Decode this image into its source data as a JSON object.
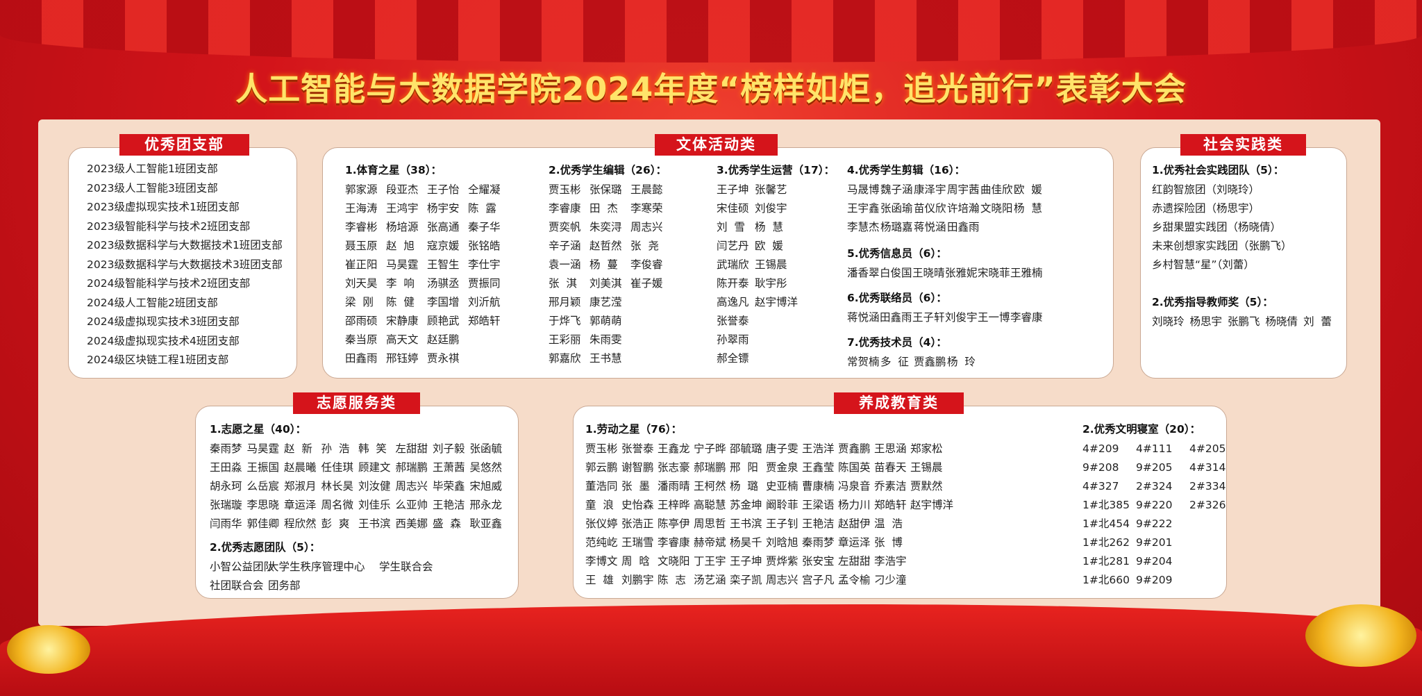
{
  "title": "人工智能与大数据学院2024年度“榜样如炬，追光前行”表彰大会",
  "branch": {
    "header": "优秀团支部",
    "items": [
      "2023级人工智能1班团支部",
      "2023级人工智能3班团支部",
      "2023级虚拟现实技术1班团支部",
      "2023级智能科学与技术2班团支部",
      "2023级数据科学与大数据技术1班团支部",
      "2023级数据科学与大数据技术3班团支部",
      "2024级智能科学与技术2班团支部",
      "2024级人工智能2班团支部",
      "2024级虚拟现实技术3班团支部",
      "2024级虚拟现实技术4班团支部",
      "2024级区块链工程1班团支部"
    ]
  },
  "culture": {
    "header": "文体活动类",
    "sections": [
      {
        "title": "1.体育之星（38）：",
        "names": [
          "郭家源",
          "段亚杰",
          "王子怡",
          "仝耀凝",
          "王海涛",
          "王鸿宇",
          "杨宇安",
          "陈  露",
          "李睿彬",
          "杨培源",
          "张高通",
          "秦子华",
          "聂玉原",
          "赵  旭",
          "寇京媛",
          "张铭皓",
          "崔正阳",
          "马昊霆",
          "王智生",
          "李仕宇",
          "刘天昊",
          "李  响",
          "汤骐丞",
          "贾振同",
          "梁  刚",
          "陈  健",
          "李国增",
          "刘沂航",
          "邵雨硕",
          "宋静康",
          "顾艳武",
          "郑皓轩",
          "秦当原",
          "高天文",
          "赵廷鹏",
          "",
          "田鑫雨",
          "邢钰婷",
          "贾永祺",
          ""
        ]
      },
      {
        "title": "2.优秀学生编辑（26）：",
        "names": [
          "贾玉彬",
          "张保璐",
          "王晨懿",
          "李睿康",
          "田  杰",
          "李寒荣",
          "贾奕帆",
          "朱奕浔",
          "周志兴",
          "辛子涵",
          "赵哲然",
          "张  尧",
          "袁一涵",
          "杨  蔓",
          "李俊睿",
          "张  淇",
          "刘美淇",
          "崔子媛",
          "邢月颖",
          "康艺滢",
          "",
          "于烨飞",
          "郭萌萌",
          "",
          "王彩丽",
          "朱雨雯",
          "",
          "郭嘉欣",
          "王书慧",
          ""
        ]
      },
      {
        "title": "3.优秀学生运营（17）：",
        "names": [
          "王子坤",
          "张馨艺",
          "宋佳硕",
          "刘俊宇",
          "刘  雪",
          "杨  慧",
          "闫艺丹",
          "欧  媛",
          "武瑞欣",
          "王锡晨",
          "陈开泰",
          "耿宇彤",
          "高逸凡",
          "赵宇博洋",
          "张誉泰",
          "",
          "孙翠雨",
          "",
          "郝全镖",
          ""
        ]
      },
      {
        "title": "4.优秀学生剪辑（16）：",
        "names": [
          "马晟博",
          "魏子涵",
          "康泽宇",
          "周宇茜",
          "曲佳欣",
          "欧  媛",
          "王宇鑫",
          "张函瑜",
          "苗仪欣",
          "许培瀚",
          "文晓阳",
          "杨  慧",
          "李慧杰",
          "杨璐嘉",
          "蒋悦涵",
          "田鑫雨",
          "",
          ""
        ]
      },
      {
        "title": "5.优秀信息员（6）：",
        "names": [
          "潘香翠",
          "白俊国",
          "王晓晴",
          "张雅妮",
          "宋晓菲",
          "王雅楠"
        ]
      },
      {
        "title": "6.优秀联络员（6）：",
        "names": [
          "蒋悦涵",
          "田鑫雨",
          "王子轩",
          "刘俊宇",
          "王一博",
          "李睿康"
        ]
      },
      {
        "title": "7.优秀技术员（4）：",
        "names": [
          "常贺楠",
          "多  征",
          "贾鑫鹏",
          "杨  玲"
        ]
      }
    ]
  },
  "social": {
    "header": "社会实践类",
    "sections": [
      {
        "title": "1.优秀社会实践团队（5）：",
        "names": [
          "红韵智旅团（刘晓玲）",
          "赤遗探险团（杨思宇）",
          "乡甜果盟实践团（杨晓倩）",
          "未来创想家实践团（张鹏飞）",
          "乡村智慧“星”（刘蕾）"
        ]
      },
      {
        "title": "2.优秀指导教师奖（5）：",
        "names": [
          "刘晓玲",
          "杨思宇",
          "张鹏飞",
          "杨晓倩",
          "刘  蕾"
        ]
      }
    ]
  },
  "volunteer": {
    "header": "志愿服务类",
    "sections": [
      {
        "title": "1.志愿之星（40）：",
        "names": [
          "秦雨梦",
          "马昊霆",
          "赵  新",
          "孙  浩",
          "韩  笑",
          "左甜甜",
          "刘子毅",
          "张函毓",
          "王田淼",
          "王振国",
          "赵晨曦",
          "任佳琪",
          "顾建文",
          "郝瑞鹏",
          "王萧茜",
          "吴悠然",
          "胡永珂",
          "么岳宸",
          "郑淑月",
          "林长昊",
          "刘汝健",
          "周志兴",
          "毕荣鑫",
          "宋旭威",
          "张瑞璇",
          "李思晓",
          "章运泽",
          "周名微",
          "刘佳乐",
          "么亚帅",
          "王艳洁",
          "邢永龙",
          "闫雨华",
          "郭佳卿",
          "程欣然",
          "彭  爽",
          "王书滨",
          "西美娜",
          "盛  森",
          "耿亚鑫"
        ]
      },
      {
        "title": "2.优秀志愿团队（5）：",
        "names": [
          "小智公益团队",
          "大学生秩序管理中心",
          "学生联合会",
          "社团联合会",
          "团务部",
          ""
        ]
      }
    ]
  },
  "cultivation": {
    "header": "养成教育类",
    "sections": [
      {
        "title": "1.劳动之星（76）：",
        "names": [
          "贾玉彬",
          "张誉泰",
          "王鑫龙",
          "宁子晔",
          "邵毓璐",
          "唐子雯",
          "王浩洋",
          "贾鑫鹏",
          "王思涵",
          "郑家松",
          "郭云鹏",
          "谢智鹏",
          "张志豪",
          "郝瑞鹏",
          "邢  阳",
          "贾金泉",
          "王鑫莹",
          "陈国英",
          "苗春天",
          "王锡晨",
          "董浩同",
          "张  墨",
          "潘雨晴",
          "王柯然",
          "杨  璐",
          "史亚楠",
          "曹康楠",
          "冯泉音",
          "乔素洁",
          "贾默然",
          "童  浪",
          "史怡森",
          "王梓晔",
          "高聪慧",
          "苏金坤",
          "阚聆菲",
          "王梁语",
          "杨力川",
          "郑皓轩",
          "赵宇博洋",
          "张仪婷",
          "张浩正",
          "陈亭伊",
          "周思哲",
          "王书滨",
          "王子钊",
          "王艳洁",
          "赵甜伊",
          "温  浩",
          "",
          "范纯屹",
          "王瑞雪",
          "李睿康",
          "赫帝斌",
          "杨昊千",
          "刘晗旭",
          "秦雨梦",
          "章运泽",
          "张  博",
          "",
          "李博文",
          "周  晗",
          "文晓阳",
          "丁王宇",
          "王子坤",
          "贾烨紫",
          "张安宝",
          "左甜甜",
          "李浩宇",
          "",
          "王  雄",
          "刘鹏宇",
          "陈  志",
          "汤艺涵",
          "栾子凯",
          "周志兴",
          "宫子凡",
          "孟令榆",
          "刁少潼",
          ""
        ]
      },
      {
        "title": "2.优秀文明寝室（20）：",
        "names": [
          "4#209",
          "4#111",
          "4#205",
          "9#208",
          "9#205",
          "4#314",
          "4#327",
          "2#324",
          "2#334",
          "1#北385",
          "9#220",
          "2#326",
          "1#北454",
          "9#222",
          "",
          "1#北262",
          "9#201",
          "",
          "1#北281",
          "9#204",
          "",
          "1#北660",
          "9#209",
          ""
        ]
      }
    ]
  },
  "colors": {
    "accent": "#d5141b",
    "title": "#ffe46a",
    "panel": "#f6dcc9"
  }
}
